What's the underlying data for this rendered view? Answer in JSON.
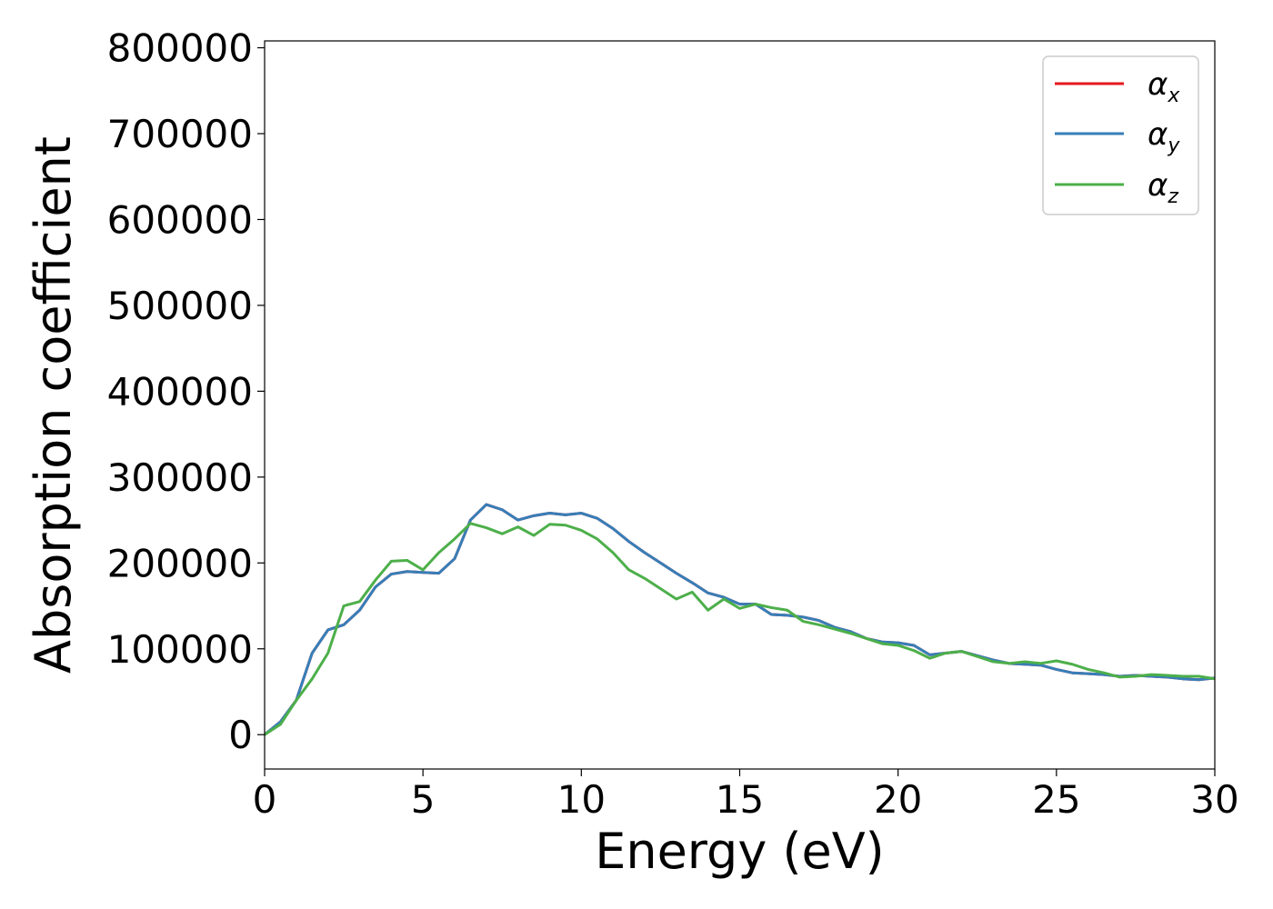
{
  "chart_data": {
    "type": "line",
    "title": "",
    "xlabel": "Energy (eV)",
    "ylabel": "Absorption coefficient",
    "xlim": [
      0,
      30
    ],
    "ylim": [
      -40000,
      808000
    ],
    "xticks": [
      0,
      5,
      10,
      15,
      20,
      25,
      30
    ],
    "yticks": [
      0,
      100000,
      200000,
      300000,
      400000,
      500000,
      600000,
      700000,
      800000
    ],
    "grid": false,
    "legend_position": "top-right",
    "series": [
      {
        "name": "αx",
        "legend_symbol": "α",
        "legend_sub": "x",
        "color": "#e41a1c",
        "x": [
          0,
          0.5,
          1.0,
          1.5,
          2.0,
          2.5,
          3.0,
          3.5,
          4.0,
          4.5,
          5.0,
          5.5,
          6.0,
          6.5,
          7.0,
          7.5,
          8.0,
          8.5,
          9.0,
          9.5,
          10.0,
          10.5,
          11.0,
          11.5,
          12.0,
          12.5,
          13.0,
          13.5,
          14.0,
          14.5,
          15.0,
          15.5,
          16.0,
          16.5,
          17.0,
          17.5,
          18.0,
          18.5,
          19.0,
          19.5,
          20.0,
          20.5,
          21.0,
          21.5,
          22.0,
          22.5,
          23.0,
          23.5,
          24.0,
          24.5,
          25.0,
          25.5,
          26.0,
          26.5,
          27.0,
          27.5,
          28.0,
          28.5,
          29.0,
          29.5,
          30.0
        ],
        "values": [
          0,
          15000,
          40000,
          95000,
          122000,
          128000,
          145000,
          172000,
          187000,
          190000,
          189000,
          188000,
          205000,
          250000,
          268000,
          262000,
          250000,
          255000,
          258000,
          256000,
          258000,
          252000,
          240000,
          225000,
          212000,
          200000,
          188000,
          177000,
          165000,
          160000,
          152000,
          152000,
          140000,
          139000,
          137000,
          133000,
          125000,
          120000,
          112000,
          108000,
          107000,
          104000,
          93000,
          95000,
          97000,
          92000,
          87000,
          83000,
          82000,
          81000,
          76000,
          72000,
          71000,
          70000,
          68000,
          69000,
          68000,
          67000,
          65000,
          64000,
          66000
        ]
      },
      {
        "name": "αy",
        "legend_symbol": "α",
        "legend_sub": "y",
        "color": "#377eb8",
        "x": [
          0,
          0.5,
          1.0,
          1.5,
          2.0,
          2.5,
          3.0,
          3.5,
          4.0,
          4.5,
          5.0,
          5.5,
          6.0,
          6.5,
          7.0,
          7.5,
          8.0,
          8.5,
          9.0,
          9.5,
          10.0,
          10.5,
          11.0,
          11.5,
          12.0,
          12.5,
          13.0,
          13.5,
          14.0,
          14.5,
          15.0,
          15.5,
          16.0,
          16.5,
          17.0,
          17.5,
          18.0,
          18.5,
          19.0,
          19.5,
          20.0,
          20.5,
          21.0,
          21.5,
          22.0,
          22.5,
          23.0,
          23.5,
          24.0,
          24.5,
          25.0,
          25.5,
          26.0,
          26.5,
          27.0,
          27.5,
          28.0,
          28.5,
          29.0,
          29.5,
          30.0
        ],
        "values": [
          0,
          15000,
          40000,
          95000,
          122000,
          128000,
          145000,
          172000,
          187000,
          190000,
          189000,
          188000,
          205000,
          250000,
          268000,
          262000,
          250000,
          255000,
          258000,
          256000,
          258000,
          252000,
          240000,
          225000,
          212000,
          200000,
          188000,
          177000,
          165000,
          160000,
          152000,
          152000,
          140000,
          139000,
          137000,
          133000,
          125000,
          120000,
          112000,
          108000,
          107000,
          104000,
          93000,
          95000,
          97000,
          92000,
          87000,
          83000,
          82000,
          81000,
          76000,
          72000,
          71000,
          70000,
          68000,
          69000,
          68000,
          67000,
          65000,
          64000,
          66000
        ]
      },
      {
        "name": "αz",
        "legend_symbol": "α",
        "legend_sub": "z",
        "color": "#4daf4a",
        "x": [
          0,
          0.5,
          1.0,
          1.5,
          2.0,
          2.5,
          3.0,
          3.5,
          4.0,
          4.5,
          5.0,
          5.5,
          6.0,
          6.5,
          7.0,
          7.5,
          8.0,
          8.5,
          9.0,
          9.5,
          10.0,
          10.5,
          11.0,
          11.5,
          12.0,
          12.5,
          13.0,
          13.5,
          14.0,
          14.5,
          15.0,
          15.5,
          16.0,
          16.5,
          17.0,
          17.5,
          18.0,
          18.5,
          19.0,
          19.5,
          20.0,
          20.5,
          21.0,
          21.5,
          22.0,
          22.5,
          23.0,
          23.5,
          24.0,
          24.5,
          25.0,
          25.5,
          26.0,
          26.5,
          27.0,
          27.5,
          28.0,
          28.5,
          29.0,
          29.5,
          30.0
        ],
        "values": [
          0,
          12000,
          40000,
          65000,
          95000,
          150000,
          155000,
          180000,
          202000,
          203000,
          192000,
          212000,
          228000,
          246000,
          241000,
          234000,
          242000,
          232000,
          245000,
          244000,
          238000,
          228000,
          212000,
          192000,
          182000,
          170000,
          158000,
          166000,
          145000,
          158000,
          147000,
          152000,
          148000,
          145000,
          132000,
          128000,
          123000,
          118000,
          112000,
          106000,
          104000,
          98000,
          89000,
          95000,
          97000,
          91000,
          85000,
          83000,
          85000,
          83000,
          86000,
          82000,
          76000,
          72000,
          67000,
          68000,
          70000,
          69000,
          68000,
          68000,
          65000
        ]
      }
    ]
  }
}
